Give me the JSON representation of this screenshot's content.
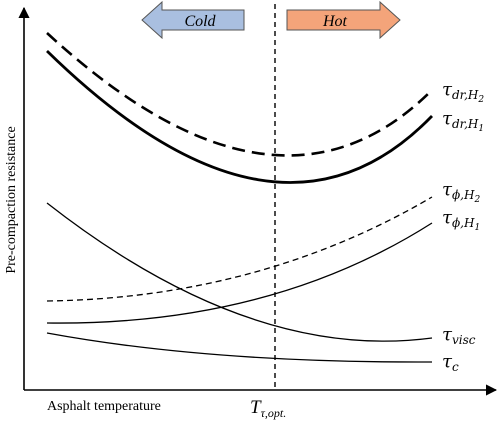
{
  "diagram": {
    "y_axis_label": "Pre-compaction resistance",
    "x_axis_label": "Asphalt temperature",
    "optimum": {
      "symbol": "T",
      "subscript": "τ,opt."
    },
    "cold_label": "Cold",
    "hot_label": "Hot",
    "colors": {
      "cold_fill": "#a9bfe0",
      "hot_fill": "#f4a47a",
      "line": "#000000"
    },
    "curves": [
      {
        "id": "dr-h2",
        "greek": "τ",
        "sub": "dr,H",
        "subsub": "2"
      },
      {
        "id": "dr-h1",
        "greek": "τ",
        "sub": "dr,H",
        "subsub": "1"
      },
      {
        "id": "phi-h2",
        "greek": "τ",
        "sub": "ϕ,H",
        "subsub": "2"
      },
      {
        "id": "phi-h1",
        "greek": "τ",
        "sub": "ϕ,H",
        "subsub": "1"
      },
      {
        "id": "visc",
        "greek": "τ",
        "sub": "visc",
        "subsub": ""
      },
      {
        "id": "c",
        "greek": "τ",
        "sub": "c",
        "subsub": ""
      }
    ]
  }
}
